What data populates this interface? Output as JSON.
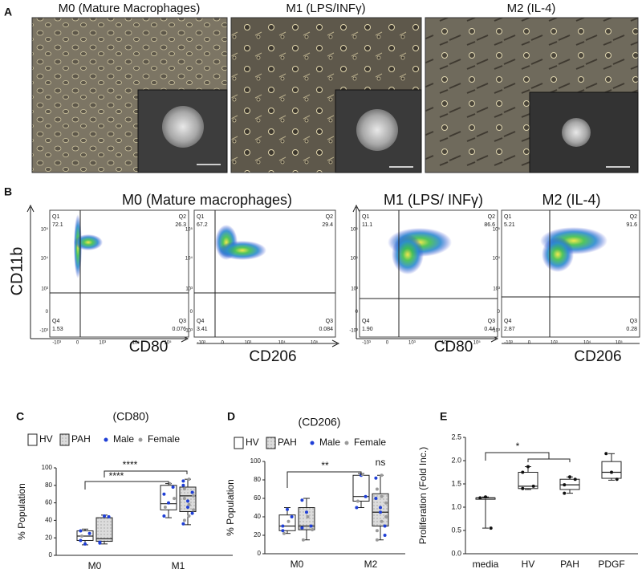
{
  "panels": {
    "a": {
      "label": "A",
      "images": [
        {
          "title": "M0 (Mature Macrophages)"
        },
        {
          "title": "M1 (LPS/INFγ)"
        },
        {
          "title": "M2 (IL-4)"
        }
      ]
    },
    "b": {
      "label": "B",
      "titles": [
        "M0 (Mature macrophages)",
        "M1 (LPS/ INFγ)",
        "M2 (IL-4)"
      ],
      "y_label": "CD11b",
      "tick_labels": [
        "-10³",
        "0",
        "10³",
        "10⁴",
        "10⁵"
      ],
      "plots": [
        {
          "x_label": "CD80",
          "quadrants": [
            {
              "name": "Q1",
              "value": 72.1
            },
            {
              "name": "Q2",
              "value": 26.3
            },
            {
              "name": "Q3",
              "value": 0.076
            },
            {
              "name": "Q4",
              "value": 1.53
            }
          ]
        },
        {
          "x_label": "CD206",
          "quadrants": [
            {
              "name": "Q1",
              "value": 67.2
            },
            {
              "name": "Q2",
              "value": 29.4
            },
            {
              "name": "Q3",
              "value": 0.084
            },
            {
              "name": "Q4",
              "value": 3.41
            }
          ]
        },
        {
          "x_label": "CD80",
          "quadrants": [
            {
              "name": "Q1",
              "value": 11.1
            },
            {
              "name": "Q2",
              "value": 86.6
            },
            {
              "name": "Q3",
              "value": 0.44
            },
            {
              "name": "Q4",
              "value": 1.9,
              "label": "1.90"
            }
          ]
        },
        {
          "x_label": "CD206",
          "quadrants": [
            {
              "name": "Q1",
              "value": 5.21
            },
            {
              "name": "Q2",
              "value": 91.6
            },
            {
              "name": "Q3",
              "value": 0.28
            },
            {
              "name": "Q4",
              "value": 2.87
            }
          ]
        }
      ]
    },
    "c": {
      "label": "C",
      "title": "(CD80)",
      "legend": [
        "HV",
        "PAH",
        "Male",
        "Female"
      ],
      "colors": {
        "male": "#1f3fd6",
        "female": "#9a9a9a"
      },
      "y_label": "% Population",
      "ylim": [
        0,
        100
      ],
      "yticks": [
        0,
        20,
        40,
        60,
        80,
        100
      ],
      "brackets": [
        {
          "text": "****"
        },
        {
          "text": "****"
        }
      ],
      "groups": [
        {
          "category": "M0",
          "boxes": [
            {
              "min": 12,
              "q1": 17,
              "median": 22,
              "q3": 28,
              "max": 30,
              "male": [
                17,
                13,
                25,
                28
              ],
              "female": [
                22
              ]
            },
            {
              "min": 13,
              "q1": 16,
              "median": 19,
              "q3": 43,
              "max": 46,
              "male": [
                15,
                45,
                44,
                14
              ],
              "female": []
            }
          ]
        },
        {
          "category": "M1",
          "boxes": [
            {
              "min": 43,
              "q1": 52,
              "median": 59,
              "q3": 80,
              "max": 82,
              "male": [
                45,
                60,
                78,
                70
              ],
              "female": [
                55,
                82,
                65
              ]
            },
            {
              "min": 35,
              "q1": 50,
              "median": 68,
              "q3": 78,
              "max": 87,
              "male": [
                36,
                55,
                72,
                85,
                62,
                48,
                80
              ],
              "female": [
                40,
                58,
                68,
                76,
                87,
                52,
                65,
                45
              ]
            }
          ]
        }
      ]
    },
    "d": {
      "label": "D",
      "title": "(CD206)",
      "legend": [
        "HV",
        "PAH",
        "Male",
        "Female"
      ],
      "colors": {
        "male": "#1f3fd6",
        "female": "#9a9a9a"
      },
      "y_label": "% Population",
      "ylim": [
        0,
        100
      ],
      "yticks": [
        0,
        20,
        40,
        60,
        80,
        100
      ],
      "brackets": [
        {
          "text": "**"
        },
        {
          "text": "ns"
        }
      ],
      "groups": [
        {
          "category": "M0",
          "boxes": [
            {
              "min": 22,
              "q1": 25,
              "median": 30,
              "q3": 42,
              "max": 50,
              "male": [
                25,
                48,
                40,
                30
              ],
              "female": [
                22,
                35
              ]
            },
            {
              "min": 15,
              "q1": 26,
              "median": 30,
              "q3": 50,
              "max": 60,
              "male": [
                58,
                45,
                30,
                28
              ],
              "female": [
                15,
                40,
                26
              ]
            }
          ]
        },
        {
          "category": "M2",
          "boxes": [
            {
              "min": 50,
              "q1": 57,
              "median": 62,
              "q3": 85,
              "max": 87,
              "male": [
                50,
                85,
                62
              ],
              "female": [
                57,
                86
              ]
            },
            {
              "min": 15,
              "q1": 30,
              "median": 45,
              "q3": 65,
              "max": 85,
              "male": [
                60,
                45,
                30,
                82,
                50,
                20
              ],
              "female": [
                15,
                35,
                55,
                70,
                85,
                40,
                25,
                62
              ]
            }
          ]
        }
      ]
    },
    "e": {
      "label": "E",
      "y_label": "Proliferation (Fold Inc.)",
      "ylim": [
        0,
        2.5
      ],
      "yticks": [
        {
          "value": 0,
          "label": "0.0"
        },
        {
          "value": 0.5,
          "label": "0.5"
        },
        {
          "value": 1,
          "label": "1.0"
        },
        {
          "value": 1.5,
          "label": "1.5"
        },
        {
          "value": 2,
          "label": "2.0"
        },
        {
          "value": 2.5,
          "label": "2.5"
        }
      ],
      "brackets": [
        {
          "text": "*"
        }
      ],
      "groups": [
        {
          "category": "media",
          "boxes": [
            {
              "min": 0.55,
              "q1": 1.17,
              "median": 1.2,
              "q3": 1.2,
              "max": 1.22,
              "points": [
                1.2,
                1.22,
                0.55
              ]
            }
          ]
        },
        {
          "category": "HV",
          "boxes": [
            {
              "min": 1.38,
              "q1": 1.4,
              "median": 1.45,
              "q3": 1.75,
              "max": 1.87,
              "points": [
                1.4,
                1.87,
                1.45,
                1.75
              ]
            }
          ]
        },
        {
          "category": "PAH",
          "boxes": [
            {
              "min": 1.3,
              "q1": 1.38,
              "median": 1.48,
              "q3": 1.6,
              "max": 1.65,
              "points": [
                1.3,
                1.65,
                1.6,
                1.48
              ]
            }
          ]
        },
        {
          "category": "PDGF",
          "boxes": [
            {
              "min": 1.58,
              "q1": 1.62,
              "median": 1.75,
              "q3": 1.98,
              "max": 2.15,
              "points": [
                2.15,
                1.75,
                1.6
              ]
            }
          ]
        }
      ]
    }
  }
}
